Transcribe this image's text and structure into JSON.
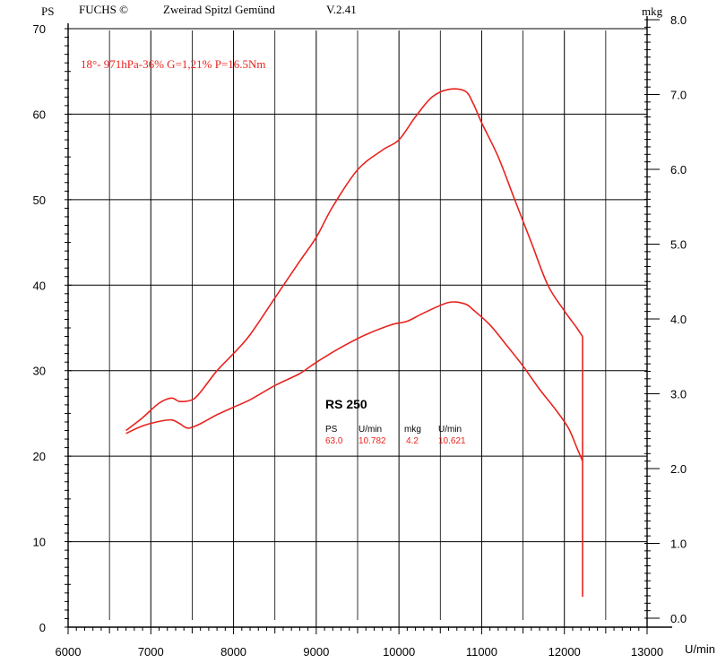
{
  "header": {
    "left_unit": "PS",
    "brand": "FUCHS ©",
    "company": "Zweirad Spitzl Gemünd",
    "version": "V.2.41",
    "right_unit": "mkg"
  },
  "conditions": "18°- 971hPa-36% G=1,21% P=16.5Nm",
  "info_box": {
    "title": "RS 250",
    "headers": [
      "PS",
      "U/min",
      "mkg",
      "U/min"
    ],
    "values": [
      "63.0",
      "10.782",
      "4.2",
      "10.621"
    ]
  },
  "colors": {
    "curve": "#e8231e",
    "grid": "#000000",
    "text_accent": "#e8231e"
  },
  "chart_data": {
    "type": "line",
    "xlabel": "U/min",
    "ylabel": "PS",
    "y2label": "mkg",
    "xlim": [
      6000,
      13000
    ],
    "ylim": [
      0,
      70
    ],
    "y2lim": [
      0,
      8
    ],
    "x_ticks": [
      "6000",
      "7000",
      "8000",
      "9000",
      "10000",
      "11000",
      "12000",
      "13000"
    ],
    "y_ticks": [
      "0",
      "10",
      "20",
      "30",
      "40",
      "50",
      "60",
      "70"
    ],
    "y2_ticks": [
      "0.0",
      "1.0",
      "2.0",
      "3.0",
      "4.0",
      "5.0",
      "6.0",
      "7.0",
      "8.0"
    ],
    "grid": true,
    "series": [
      {
        "axis": "left",
        "values_x": [
          6700,
          6900,
          7100,
          7250,
          7350,
          7500,
          7600,
          7800,
          8000,
          8200,
          8500,
          8800,
          9000,
          9200,
          9500,
          9800,
          10000,
          10200,
          10400,
          10600,
          10800,
          10900,
          11000,
          11200,
          11400,
          11600,
          11800,
          12000,
          12150,
          12220
        ],
        "values_y": [
          23.0,
          24.5,
          26.2,
          26.8,
          26.4,
          26.6,
          27.5,
          30.0,
          32.0,
          34.2,
          38.5,
          42.8,
          45.6,
          49.2,
          53.5,
          55.8,
          57.0,
          59.7,
          62.0,
          62.9,
          62.7,
          61.2,
          59.0,
          55.0,
          50.0,
          45.0,
          40.0,
          37.0,
          35.0,
          34.0
        ]
      },
      {
        "axis": "right",
        "values_x": [
          6700,
          6900,
          7100,
          7250,
          7350,
          7450,
          7600,
          7800,
          8000,
          8200,
          8500,
          8800,
          9000,
          9300,
          9600,
          9900,
          10100,
          10300,
          10600,
          10800,
          10900,
          11100,
          11300,
          11500,
          11700,
          11900,
          12050,
          12150,
          12220
        ],
        "values_y": [
          2.47,
          2.57,
          2.63,
          2.65,
          2.6,
          2.54,
          2.6,
          2.72,
          2.82,
          2.92,
          3.11,
          3.27,
          3.42,
          3.62,
          3.79,
          3.92,
          3.97,
          4.08,
          4.22,
          4.2,
          4.12,
          3.92,
          3.65,
          3.37,
          3.06,
          2.78,
          2.54,
          2.28,
          2.1
        ]
      }
    ]
  }
}
